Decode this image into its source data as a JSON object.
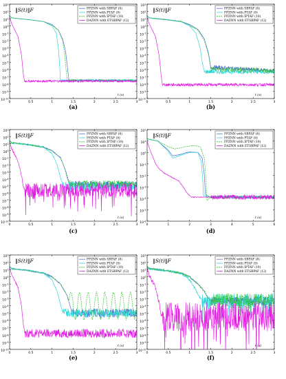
{
  "colors": {
    "sbpaf": "#4f6fd6",
    "ptaf": "#33d6d6",
    "iptaf": "#2fbf2f",
    "etsbpaf": "#e020e0"
  },
  "chart_data": [
    {
      "type": "line",
      "panel": "(a)",
      "caption": "(a)",
      "norm_label": "‖S(t)‖F",
      "xlabel": "t (s)",
      "xlim": [
        0,
        3
      ],
      "ylim_exp": [
        -10,
        3
      ],
      "y_scale": "log",
      "x_ticks": [
        "0",
        "0.5",
        "1",
        "1.5",
        "2",
        "2.5",
        "3"
      ],
      "y_ticks": [
        "10^3",
        "10^2",
        "10^1",
        "10^0",
        "10^-1",
        "10^-2",
        "10^-3",
        "10^-4",
        "10^-5",
        "10^-6",
        "10^-7",
        "10^-8",
        "10^-9",
        "10^-10"
      ],
      "legend": [
        "FPZNN with SBPAF (8)",
        "FPZNN with PTAF (9)",
        "FPZNN with IPTAF (10)",
        "DAZNN with ETSBPAF (12)"
      ],
      "series": [
        {
          "name": "FPZNN with SBPAF (8)",
          "key": "sbpaf",
          "x": [
            0,
            0.05,
            0.4,
            0.8,
            1.0,
            1.15,
            1.25,
            1.32,
            1.36,
            1.4,
            3.0
          ],
          "y_exp": [
            1.4,
            1.1,
            0.9,
            0.6,
            0.2,
            -0.6,
            -1.8,
            -3.5,
            -5.5,
            -7.5,
            -7.5
          ],
          "noise": 0.12
        },
        {
          "name": "FPZNN with PTAF (9)",
          "key": "ptaf",
          "x": [
            0,
            0.05,
            0.4,
            0.8,
            1.0,
            1.1,
            1.15,
            1.18,
            1.2,
            3.0
          ],
          "y_exp": [
            1.4,
            1.1,
            0.9,
            0.6,
            0.0,
            -1.0,
            -3.0,
            -5.5,
            -7.5,
            -7.5
          ],
          "noise": 0.12
        },
        {
          "name": "FPZNN with IPTAF (10)",
          "key": "iptaf",
          "x": [
            0,
            0.05,
            0.4,
            0.8,
            1.0,
            1.15,
            1.25,
            1.3,
            1.33,
            1.36,
            3.0
          ],
          "y_exp": [
            1.4,
            1.1,
            0.9,
            0.6,
            0.1,
            -0.6,
            -2.0,
            -4.0,
            -6.0,
            -7.5,
            -7.5
          ],
          "noise": 0.12,
          "dashed": true
        },
        {
          "name": "DAZNN with ETSBPAF (12)",
          "key": "etsbpaf",
          "x": [
            0,
            0.05,
            0.2,
            0.28,
            0.32,
            0.35,
            3.0
          ],
          "y_exp": [
            1.2,
            0.3,
            -1.5,
            -4.0,
            -6.5,
            -7.6,
            -7.6
          ],
          "noise": 0.15
        }
      ]
    },
    {
      "type": "line",
      "panel": "(b)",
      "caption": "(b)",
      "norm_label": "‖S(t)‖F",
      "xlabel": "t (s)",
      "xlim": [
        0,
        3
      ],
      "ylim_exp": [
        -10,
        3
      ],
      "y_scale": "log",
      "x_ticks": [
        "0",
        "0.5",
        "1",
        "1.5",
        "2",
        "2.5",
        "3"
      ],
      "y_ticks": [
        "10^3",
        "10^2",
        "10^1",
        "10^0",
        "10^-1",
        "10^-2",
        "10^-3",
        "10^-4",
        "10^-5",
        "10^-6",
        "10^-7",
        "10^-8",
        "10^-9",
        "10^-10"
      ],
      "legend": [
        "FPZNN with SBPAF (8)",
        "FPZNN with PTAF (9)",
        "FPZNN with IPTAF (10)",
        "DAZNN with ETSBPAF (12)"
      ],
      "series": [
        {
          "name": "FPZNN with SBPAF (8)",
          "key": "sbpaf",
          "x": [
            0,
            0.05,
            0.4,
            0.8,
            1.0,
            1.2,
            1.35,
            1.45,
            1.5,
            3.0
          ],
          "y_exp": [
            1.4,
            1.1,
            0.9,
            0.6,
            0.2,
            -0.5,
            -1.8,
            -3.8,
            -5.7,
            -6.2
          ],
          "noise": 0.3
        },
        {
          "name": "FPZNN with PTAF (9)",
          "key": "ptaf",
          "x": [
            0,
            0.05,
            0.4,
            0.8,
            1.0,
            1.15,
            1.25,
            1.3,
            1.35,
            3.0
          ],
          "y_exp": [
            1.4,
            1.1,
            0.9,
            0.6,
            0.0,
            -1.0,
            -3.0,
            -5.0,
            -6.3,
            -6.3
          ],
          "noise": 0.3
        },
        {
          "name": "FPZNN with IPTAF (10)",
          "key": "iptaf",
          "x": [
            0,
            0.05,
            0.4,
            0.8,
            1.0,
            1.2,
            1.35,
            1.45,
            1.5,
            3.0
          ],
          "y_exp": [
            1.4,
            1.1,
            0.9,
            0.6,
            0.1,
            -0.6,
            -2.0,
            -4.0,
            -5.9,
            -6.2
          ],
          "noise": 0.35,
          "dashed": true
        },
        {
          "name": "DAZNN with ETSBPAF (12)",
          "key": "etsbpaf",
          "x": [
            0,
            0.05,
            0.2,
            0.28,
            0.33,
            0.36,
            3.0
          ],
          "y_exp": [
            1.2,
            0.3,
            -1.5,
            -4.0,
            -6.8,
            -8.1,
            -8.1
          ],
          "noise": 0.2
        }
      ]
    },
    {
      "type": "line",
      "panel": "(c)",
      "caption": "(c)",
      "norm_label": "‖S(t)‖F",
      "xlabel": "t (s)",
      "xlim": [
        0,
        3
      ],
      "ylim_exp": [
        -10,
        3
      ],
      "y_scale": "log",
      "x_ticks": [
        "0",
        "0.5",
        "1",
        "1.5",
        "2",
        "2.5",
        "3"
      ],
      "y_ticks": [
        "10^3",
        "10^2",
        "10^1",
        "10^0",
        "10^-1",
        "10^-2",
        "10^-3",
        "10^-4",
        "10^-5",
        "10^-6",
        "10^-7",
        "10^-8",
        "10^-9",
        "10^-10"
      ],
      "legend": [
        "FPZNN with SBPAF (8)",
        "FPZNN with PTAF (9)",
        "FPZNN with IPTAF (10)",
        "DAZNN with ETSBPAF (12)"
      ],
      "series": [
        {
          "name": "FPZNN with SBPAF (8)",
          "key": "sbpaf",
          "x": [
            0,
            0.05,
            0.4,
            0.8,
            1.0,
            1.2,
            1.3,
            1.38,
            1.42,
            3.0
          ],
          "y_exp": [
            1.4,
            1.1,
            0.9,
            0.5,
            0.0,
            -1.0,
            -2.5,
            -4.0,
            -4.8,
            -4.8
          ],
          "noise": 0.5
        },
        {
          "name": "FPZNN with PTAF (9)",
          "key": "ptaf",
          "x": [
            0,
            0.05,
            0.4,
            0.8,
            1.0,
            1.12,
            1.2,
            1.26,
            3.0
          ],
          "y_exp": [
            1.4,
            1.1,
            0.9,
            0.5,
            -0.4,
            -2.0,
            -3.8,
            -5.0,
            -5.0
          ],
          "noise": 0.7
        },
        {
          "name": "FPZNN with IPTAF (10)",
          "key": "iptaf",
          "x": [
            0,
            0.05,
            0.4,
            0.8,
            1.0,
            1.2,
            1.3,
            1.36,
            1.4,
            3.0
          ],
          "y_exp": [
            1.4,
            1.1,
            0.9,
            0.5,
            0.0,
            -1.0,
            -2.5,
            -4.0,
            -4.7,
            -4.7
          ],
          "noise": 0.5,
          "dashed": true
        },
        {
          "name": "DAZNN with ETSBPAF (12)",
          "key": "etsbpaf",
          "x": [
            0,
            0.05,
            0.2,
            0.28,
            0.32,
            0.36,
            3.0
          ],
          "y_exp": [
            1.2,
            0.3,
            -1.5,
            -3.5,
            -5.0,
            -5.6,
            -5.6
          ],
          "noise": 1.0
        }
      ]
    },
    {
      "type": "line",
      "panel": "(d)",
      "caption": "(d)",
      "norm_label": "‖S(t)‖F",
      "xlabel": "t (s)",
      "xlim": [
        0,
        6
      ],
      "ylim_exp": [
        -6,
        2
      ],
      "y_scale": "log",
      "x_ticks": [
        "0",
        "1",
        "2",
        "3",
        "4",
        "5",
        "6"
      ],
      "y_ticks": [
        "10^2",
        "10^1",
        "10^0",
        "10^-1",
        "10^-2",
        "10^-3",
        "10^-4",
        "10^-5",
        "10^-6"
      ],
      "legend": [
        "FPZNN with SBPAF (8)",
        "FPZNN with PTAF (9)",
        "FPZNN with IPTAF (10)",
        "DAZNN with ETSBPAF (12)"
      ],
      "series": [
        {
          "name": "FPZNN with SBPAF (8)",
          "key": "sbpaf",
          "x": [
            0,
            0.1,
            0.5,
            1.0,
            1.2,
            1.5,
            2.0,
            2.4,
            2.6,
            2.7,
            2.75,
            3.0,
            6.0
          ],
          "y_exp": [
            1.2,
            1.15,
            1.0,
            0.2,
            -0.3,
            -0.2,
            0.05,
            0.0,
            -0.5,
            -2.0,
            -3.7,
            -3.9,
            -3.9
          ],
          "noise": 0.12
        },
        {
          "name": "FPZNN with PTAF (9)",
          "key": "ptaf",
          "x": [
            0,
            0.1,
            0.5,
            1.0,
            1.2,
            1.5,
            2.0,
            2.4,
            2.55,
            2.62,
            2.66,
            3.0,
            6.0
          ],
          "y_exp": [
            1.2,
            1.15,
            1.0,
            0.1,
            -0.5,
            -0.3,
            0.0,
            0.0,
            -0.8,
            -2.2,
            -3.8,
            -3.9,
            -3.9
          ],
          "noise": 0.12
        },
        {
          "name": "FPZNN with IPTAF (10)",
          "key": "iptaf",
          "x": [
            0,
            0.1,
            0.5,
            1.0,
            1.3,
            1.8,
            2.2,
            2.5,
            2.7,
            2.78,
            2.82,
            3.0,
            6.0
          ],
          "y_exp": [
            1.2,
            1.15,
            1.0,
            0.5,
            0.3,
            0.5,
            0.6,
            0.5,
            -0.5,
            -2.5,
            -4.2,
            -3.9,
            -3.9
          ],
          "noise": 0.12,
          "dashed": true
        },
        {
          "name": "DAZNN with ETSBPAF (12)",
          "key": "etsbpaf",
          "x": [
            0,
            0.1,
            0.4,
            0.6,
            0.8,
            1.0,
            1.2,
            1.5,
            1.7,
            1.9,
            2.1,
            3.0,
            6.0
          ],
          "y_exp": [
            1.0,
            0.4,
            -1.0,
            -1.5,
            -1.8,
            -2.0,
            -2.2,
            -2.5,
            -3.0,
            -3.6,
            -3.9,
            -3.9,
            -3.9
          ],
          "noise": 0.2
        }
      ]
    },
    {
      "type": "line",
      "panel": "(e)",
      "caption": "(e)",
      "norm_label": "‖S(t)‖F",
      "xlabel": "t (s)",
      "xlim": [
        0,
        3
      ],
      "ylim_exp": [
        -10,
        3
      ],
      "y_scale": "log",
      "x_ticks": [
        "0",
        "0.5",
        "1",
        "1.5",
        "2",
        "2.5",
        "3"
      ],
      "y_ticks": [
        "10^3",
        "10^2",
        "10^1",
        "10^0",
        "10^-1",
        "10^-2",
        "10^-3",
        "10^-4",
        "10^-5",
        "10^-6",
        "10^-7",
        "10^-8",
        "10^-9",
        "10^-10"
      ],
      "legend": [
        "FPZNN with SBPAF (8)",
        "FPZNN with PTAF (9)",
        "FPZNN with IPTAF (10)",
        "DAZNN with ETSBPAF (12)"
      ],
      "series": [
        {
          "name": "FPZNN with SBPAF (8)",
          "key": "sbpaf",
          "x": [
            0,
            0.05,
            0.4,
            0.8,
            1.0,
            1.2,
            1.35,
            1.45,
            1.5,
            3.0
          ],
          "y_exp": [
            1.4,
            1.1,
            0.9,
            0.5,
            0.0,
            -1.0,
            -2.5,
            -4.5,
            -5.0,
            -5.0
          ],
          "noise": 0.6
        },
        {
          "name": "FPZNN with PTAF (9)",
          "key": "ptaf",
          "x": [
            0,
            0.05,
            0.4,
            0.8,
            1.0,
            1.12,
            1.2,
            1.26,
            3.0
          ],
          "y_exp": [
            1.4,
            1.1,
            0.9,
            0.5,
            -0.4,
            -2.0,
            -3.8,
            -5.0,
            -5.0
          ],
          "noise": 0.6
        },
        {
          "name": "FPZNN with IPTAF (10)",
          "key": "iptaf",
          "x": [
            0,
            0.05,
            0.4,
            0.8,
            1.0,
            1.2,
            1.35,
            1.45,
            3.0
          ],
          "y_exp": [
            1.4,
            1.1,
            0.9,
            0.5,
            0.0,
            -1.0,
            -2.5,
            -4.0,
            -4.0
          ],
          "noise": 0.2,
          "dashed": true,
          "oscillation": {
            "amplitude": 1.8,
            "period": 0.2,
            "start": 1.4
          }
        },
        {
          "name": "DAZNN with ETSBPAF (12)",
          "key": "etsbpaf",
          "x": [
            0,
            0.05,
            0.2,
            0.28,
            0.32,
            0.36,
            3.0
          ],
          "y_exp": [
            1.2,
            0.3,
            -1.5,
            -4.0,
            -6.5,
            -7.8,
            -7.8
          ],
          "noise": 0.6
        }
      ]
    },
    {
      "type": "line",
      "panel": "(f)",
      "caption": "(f)",
      "norm_label": "‖S(t)‖F",
      "xlabel": "t (s)",
      "xlim": [
        0,
        3
      ],
      "ylim_exp": [
        -10,
        3
      ],
      "y_scale": "log",
      "x_ticks": [
        "0",
        "0.5",
        "1",
        "1.5",
        "2",
        "2.5",
        "3"
      ],
      "y_ticks": [
        "10^3",
        "10^2",
        "10^1",
        "10^0",
        "10^-1",
        "10^-2",
        "10^-3",
        "10^-4",
        "10^-5",
        "10^-6",
        "10^-7",
        "10^-8",
        "10^-9",
        "10^-10"
      ],
      "legend": [
        "FPZNN with SBPAF (8)",
        "FPZNN with PTAF (9)",
        "FPZNN with IPTAF (10)",
        "DAZNN with ETSBPAF (12)"
      ],
      "series": [
        {
          "name": "FPZNN with SBPAF (8)",
          "key": "sbpaf",
          "x": [
            0,
            0.05,
            0.4,
            0.8,
            1.0,
            1.2,
            1.35,
            1.45,
            1.5,
            3.0
          ],
          "y_exp": [
            1.4,
            1.1,
            0.9,
            0.5,
            0.0,
            -1.0,
            -2.0,
            -3.0,
            -3.3,
            -3.3
          ],
          "noise": 0.6
        },
        {
          "name": "FPZNN with PTAF (9)",
          "key": "ptaf",
          "x": [
            0,
            0.05,
            0.4,
            0.8,
            1.0,
            1.12,
            1.2,
            1.3,
            3.0
          ],
          "y_exp": [
            1.4,
            1.1,
            0.9,
            0.5,
            -0.4,
            -1.5,
            -2.5,
            -3.3,
            -3.3
          ],
          "noise": 1.0
        },
        {
          "name": "FPZNN with IPTAF (10)",
          "key": "iptaf",
          "x": [
            0,
            0.05,
            0.4,
            0.8,
            1.0,
            1.2,
            1.35,
            1.45,
            1.5,
            3.0
          ],
          "y_exp": [
            1.4,
            1.1,
            0.9,
            0.5,
            0.0,
            -1.0,
            -2.0,
            -3.0,
            -3.2,
            -3.2
          ],
          "noise": 0.9,
          "dashed": true
        },
        {
          "name": "DAZNN with ETSBPAF (12)",
          "key": "etsbpaf",
          "x": [
            0,
            0.05,
            0.2,
            0.28,
            0.32,
            0.36,
            3.0
          ],
          "y_exp": [
            1.2,
            0.3,
            -1.5,
            -3.5,
            -5.0,
            -5.5,
            -5.5
          ],
          "noise": 2.0
        }
      ]
    }
  ]
}
